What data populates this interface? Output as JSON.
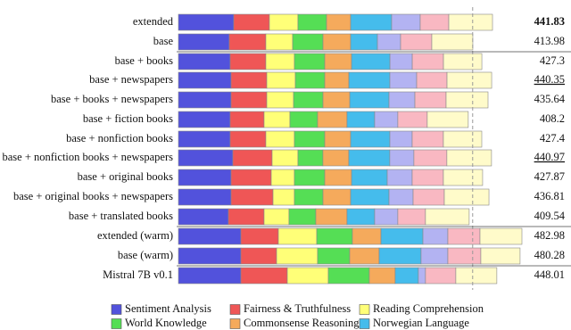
{
  "chart_data": {
    "type": "stacked-bar",
    "categories": [
      "extended",
      "base",
      "base + books",
      "base + newspapers",
      "base + books + newspapers",
      "base + fiction books",
      "base + nonfiction books",
      "base + nonfiction books + newspapers",
      "base + original books",
      "base + original books + newspapers",
      "base + translated books",
      "extended (warm)",
      "base (warm)",
      "Mistral 7B v0.1"
    ],
    "totals": [
      441.83,
      413.98,
      427.3,
      440.35,
      435.64,
      408.2,
      427.4,
      440.97,
      427.87,
      436.81,
      409.54,
      482.98,
      480.28,
      448.01
    ],
    "bold": [
      0
    ],
    "underline": [
      3,
      7
    ],
    "series": [
      {
        "name": "Sentiment Analysis",
        "color": "#5252dc",
        "values": [
          77.8,
          71.5,
          72.8,
          74.1,
          74.1,
          72.8,
          72.8,
          76.6,
          74.1,
          74.1,
          70.3,
          87.9,
          87.9,
          87.9
        ]
      },
      {
        "name": "Fairness & Truthfulness",
        "color": "#ef5656",
        "values": [
          50.2,
          51.5,
          50.2,
          50.2,
          50.2,
          47.7,
          50.2,
          55.2,
          56.5,
          59.0,
          50.2,
          52.7,
          50.2,
          65.3
        ]
      },
      {
        "name": "Reading Comprehension",
        "color": "#ffff78",
        "values": [
          40.2,
          37.7,
          40.2,
          40.2,
          37.7,
          36.4,
          40.2,
          36.4,
          32.6,
          30.1,
          35.1,
          54.0,
          57.7,
          57.7
        ]
      },
      {
        "name": "World Knowledge",
        "color": "#55de55",
        "values": [
          40.2,
          42.7,
          42.7,
          41.4,
          41.4,
          38.9,
          42.7,
          35.1,
          42.7,
          40.2,
          37.7,
          50.2,
          45.2,
          57.7
        ]
      },
      {
        "name": "Commonsense Reasoning",
        "color": "#f5aa5c",
        "values": [
          33.9,
          38.9,
          37.7,
          33.9,
          37.7,
          41.4,
          36.4,
          36.4,
          37.7,
          38.9,
          43.9,
          40.2,
          41.4,
          36.4
        ]
      },
      {
        "name": "Norwegian Language",
        "color": "#45bcec",
        "values": [
          57.7,
          37.7,
          54.0,
          57.7,
          55.2,
          38.9,
          55.2,
          57.7,
          50.2,
          54.0,
          38.9,
          59.0,
          59.0,
          32.6
        ]
      },
      {
        "color": "#b3b3f2",
        "values": [
          40.2,
          32.6,
          31.4,
          37.7,
          36.4,
          32.6,
          31.4,
          33.9,
          35.1,
          33.9,
          32.6,
          35.1,
          37.7,
          10.0
        ]
      },
      {
        "color": "#f9b8c2",
        "values": [
          40.2,
          43.9,
          43.9,
          42.7,
          43.9,
          41.4,
          43.9,
          46.4,
          43.9,
          43.9,
          38.9,
          45.2,
          46.4,
          42.7
        ]
      },
      {
        "color": "#fffbca",
        "values": [
          61.5,
          57.7,
          54.0,
          62.8,
          59.0,
          57.7,
          54.0,
          62.8,
          55.2,
          62.8,
          61.5,
          59.0,
          55.2,
          57.7
        ]
      }
    ]
  }
}
